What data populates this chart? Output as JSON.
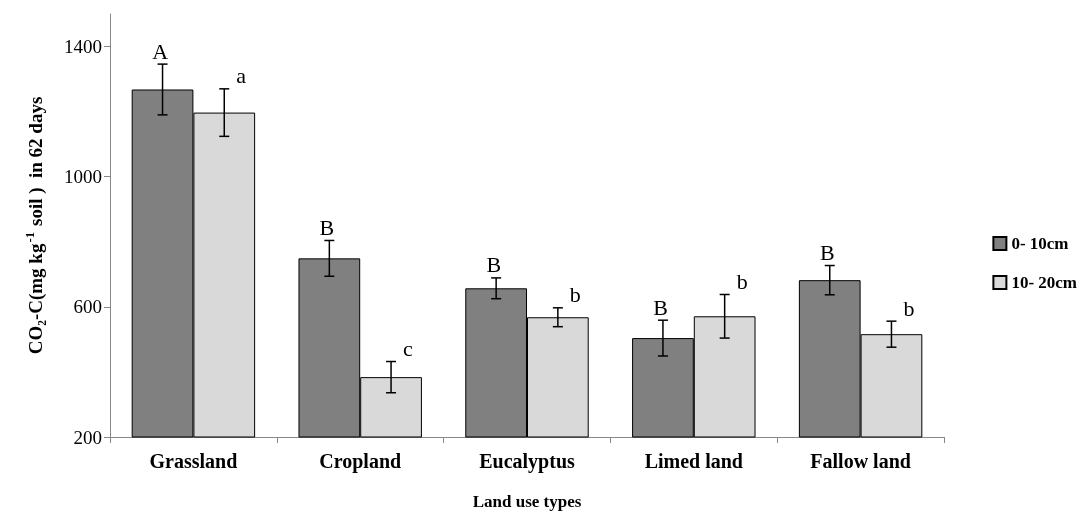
{
  "chart_data": {
    "type": "bar",
    "xlabel": "Land use types",
    "ylabel": "CO₂-C(mg kg$^{-1}$ soil )  in 62 days",
    "categories": [
      "Grassland",
      "Cropland",
      "Eucalyptus",
      "Limed land",
      "Fallow land"
    ],
    "series": [
      {
        "name": "0- 10cm",
        "color": "#808080",
        "values": [
          1268,
          749,
          657,
          504,
          682
        ],
        "errors": [
          78,
          55,
          32,
          55,
          45
        ],
        "value_labels": [
          "A",
          "B",
          "B",
          "B",
          "B"
        ]
      },
      {
        "name": "10- 20cm",
        "color": "#d9d9d9",
        "values": [
          1197,
          384,
          568,
          571,
          516
        ],
        "errors": [
          73,
          48,
          29,
          67,
          40
        ],
        "value_labels": [
          "a",
          "c",
          "b",
          "b",
          "b"
        ]
      }
    ],
    "ylim": [
      200,
      1500
    ],
    "yticks": [
      200,
      600,
      1000,
      1400
    ],
    "grid": false,
    "legend": "right"
  }
}
